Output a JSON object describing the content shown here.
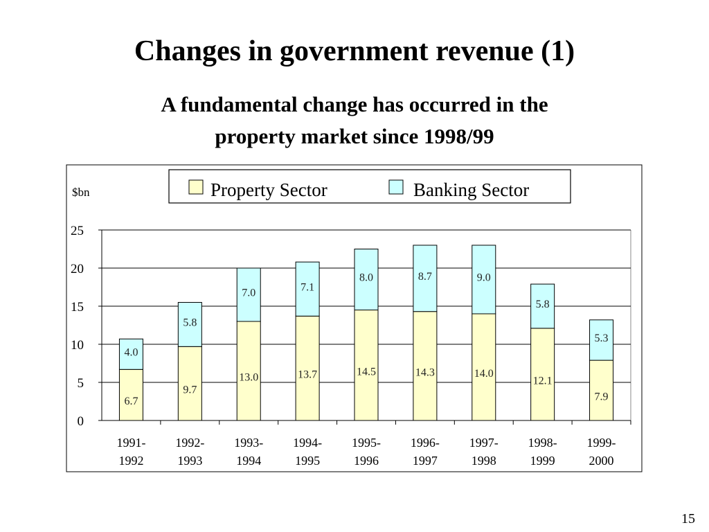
{
  "slide": {
    "title": "Changes in government revenue (1)",
    "subtitle_line1": "A fundamental change has occurred in the",
    "subtitle_line2": "property market since 1998/99",
    "page_number": "15"
  },
  "chart_data": {
    "type": "bar",
    "stacked": true,
    "ylabel": "$bn",
    "ylim": [
      0,
      25
    ],
    "yticks": [
      0,
      5,
      10,
      15,
      20,
      25
    ],
    "grid": true,
    "legend_position": "top",
    "categories": [
      [
        "1991-",
        "1992"
      ],
      [
        "1992-",
        "1993"
      ],
      [
        "1993-",
        "1994"
      ],
      [
        "1994-",
        "1995"
      ],
      [
        "1995-",
        "1996"
      ],
      [
        "1996-",
        "1997"
      ],
      [
        "1997-",
        "1998"
      ],
      [
        "1998-",
        "1999"
      ],
      [
        "1999-",
        "2000"
      ]
    ],
    "series": [
      {
        "name": "Property Sector",
        "color": "#ffffcc",
        "values": [
          6.7,
          9.7,
          13.0,
          13.7,
          14.5,
          14.3,
          14.0,
          12.1,
          7.9
        ],
        "labels": [
          "6.7",
          "9.7",
          "13.0",
          "13.7",
          "14.5",
          "14.3",
          "14.0",
          "12.1",
          "7.9"
        ]
      },
      {
        "name": "Banking Sector",
        "color": "#ccffff",
        "values": [
          4.0,
          5.8,
          7.0,
          7.1,
          8.0,
          8.7,
          9.0,
          5.8,
          5.3
        ],
        "labels": [
          "4.0",
          "5.8",
          "7.0",
          "7.1",
          "8.0",
          "8.7",
          "9.0",
          "5.8",
          "5.3"
        ]
      }
    ]
  }
}
